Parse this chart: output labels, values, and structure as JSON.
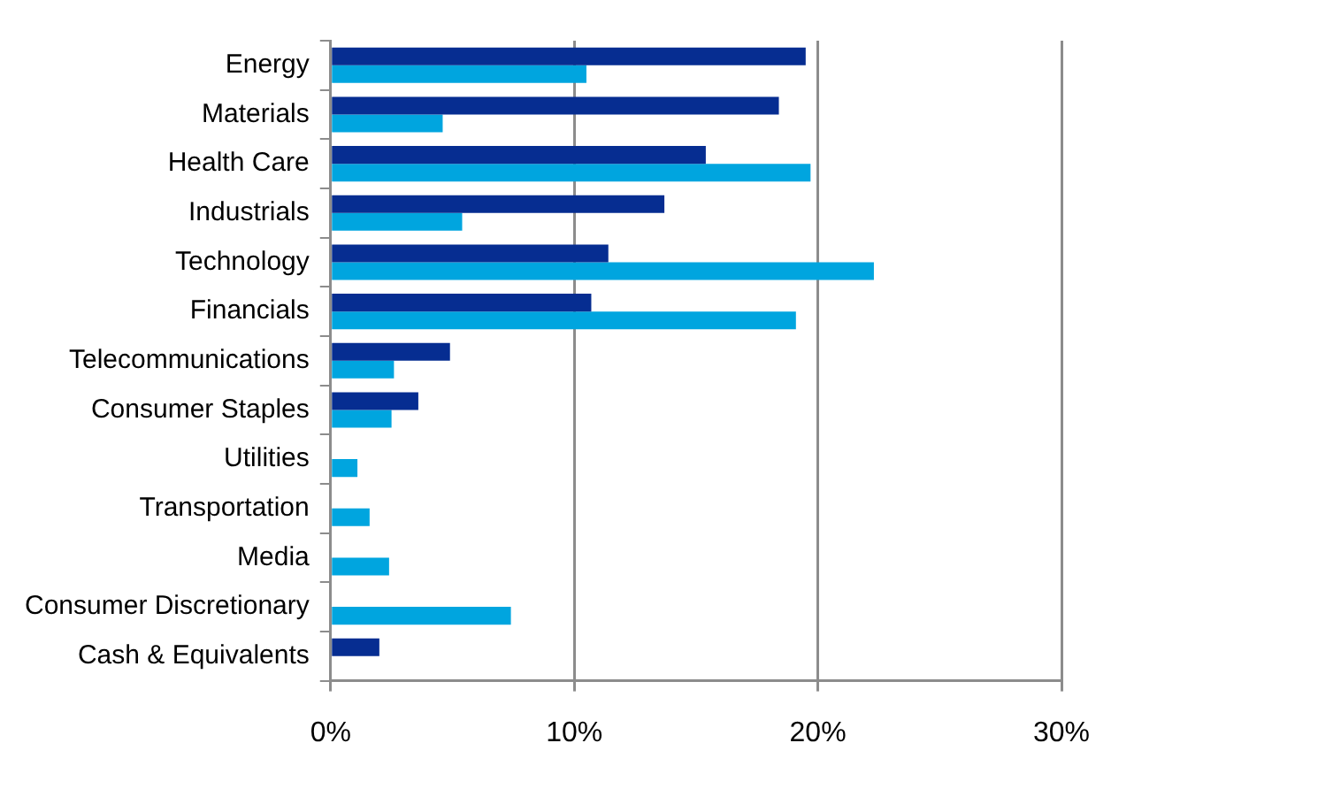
{
  "chart_data": {
    "type": "bar",
    "orientation": "horizontal",
    "categories": [
      "Energy",
      "Materials",
      "Health Care",
      "Industrials",
      "Technology",
      "Financials",
      "Telecommunications",
      "Consumer Staples",
      "Utilities",
      "Transportation",
      "Media",
      "Consumer Discretionary",
      "Cash & Equivalents"
    ],
    "series": [
      {
        "color": "#062d91",
        "values": [
          19.5,
          18.4,
          15.4,
          13.7,
          11.4,
          10.7,
          4.9,
          3.6,
          null,
          null,
          null,
          null,
          2.0
        ]
      },
      {
        "color": "#00a5df",
        "values": [
          10.5,
          4.6,
          19.7,
          5.4,
          22.3,
          19.1,
          2.6,
          2.5,
          1.1,
          1.6,
          2.4,
          7.4,
          null
        ]
      }
    ],
    "xlim": [
      0,
      30
    ],
    "xticks": [
      {
        "value": 0,
        "label": "0%"
      },
      {
        "value": 10,
        "label": "10%"
      },
      {
        "value": 20,
        "label": "20%"
      },
      {
        "value": 30,
        "label": "30%"
      }
    ],
    "grid": "x"
  }
}
